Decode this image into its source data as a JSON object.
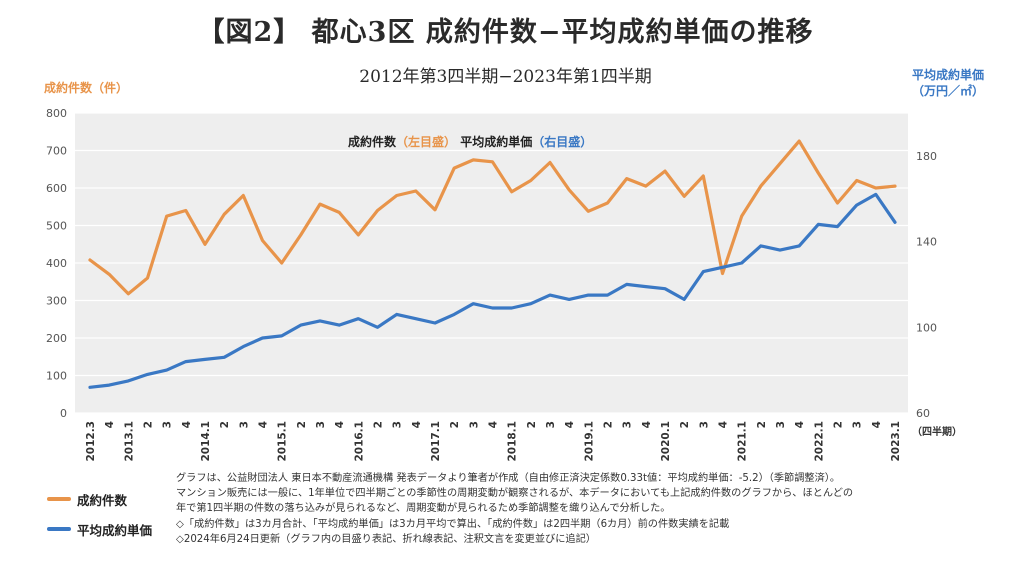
{
  "title": "【図2】 都心3区  成約件数−平均成約単価の推移",
  "subtitle": "2012年第3四半期−2023年第1四半期",
  "colors": {
    "orange": "#e8944a",
    "blue": "#3a78c4",
    "plot_bg": "#eeeeee",
    "grid": "#ffffff"
  },
  "chart_data": {
    "type": "line",
    "yleft_label": "成約件数（件）",
    "yright_label_line1": "平均成約単価",
    "yright_label_line2": "（万円／㎡）",
    "x_unit_label": "（四半期）",
    "ylim_left": [
      0,
      800
    ],
    "ylim_right": [
      60,
      200
    ],
    "yleft_ticks": [
      "0",
      "100",
      "200",
      "300",
      "400",
      "500",
      "600",
      "700",
      "800"
    ],
    "yright_ticks": [
      "60",
      "100",
      "140",
      "180"
    ],
    "grid": true,
    "categories": [
      "2012.3",
      "4",
      "2013.1",
      "2",
      "3",
      "4",
      "2014.1",
      "2",
      "3",
      "4",
      "2015.1",
      "2",
      "3",
      "4",
      "2016.1",
      "2",
      "3",
      "4",
      "2017.1",
      "2",
      "3",
      "4",
      "2018.1",
      "2",
      "3",
      "4",
      "2019.1",
      "2",
      "3",
      "4",
      "2020.1",
      "2",
      "3",
      "4",
      "2021.1",
      "2",
      "3",
      "4",
      "2022.1",
      "2",
      "3",
      "4",
      "2023.1"
    ],
    "legend_inline": {
      "a": "成約件数",
      "a_side": "（左目盛）",
      "b": "平均成約単価",
      "b_side": "（右目盛）"
    },
    "series": [
      {
        "name": "成約件数",
        "axis": "left",
        "values": [
          408,
          370,
          318,
          360,
          525,
          540,
          450,
          530,
          580,
          460,
          400,
          475,
          557,
          535,
          475,
          540,
          580,
          592,
          542,
          653,
          675,
          670,
          590,
          620,
          668,
          595,
          538,
          560,
          625,
          605,
          645,
          578,
          632,
          372,
          525,
          605,
          665,
          725,
          640,
          560,
          620,
          600,
          605
        ]
      },
      {
        "name": "平均成約単価",
        "axis": "right",
        "values": [
          72,
          73,
          75,
          78,
          80,
          84,
          85,
          86,
          91,
          95,
          96,
          101,
          103,
          101,
          104,
          100,
          106,
          104,
          102,
          106,
          111,
          109,
          109,
          111,
          115,
          113,
          115,
          115,
          120,
          119,
          118,
          113,
          126,
          128,
          130,
          138,
          136,
          138,
          148,
          147,
          157,
          162,
          149
        ]
      }
    ]
  },
  "legend": {
    "item1": "成約件数",
    "item2": "平均成約単価"
  },
  "notes": [
    "グラフは、公益財団法人 東日本不動産流通機構 発表データより筆者が作成（自由修正済決定係数0.33t値：平均成約単価：-5.2）（季節調整済）。",
    "マンション販売には一般に、1年単位で四半期ごとの季節性の周期変動が観察されるが、本データにおいても上記成約件数のグラフから、ほとんどの",
    "年で第1四半期の件数の落ち込みが見られるなど、周期変動が見られるため季節調整を織り込んで分析した。",
    "◇「成約件数」は3カ月合計、「平均成約単価」は3カ月平均で算出、「成約件数」は2四半期（6カ月）前の件数実績を記載",
    "◇2024年6月24日更新（グラフ内の目盛り表記、折れ線表記、注釈文言を変更並びに追記）"
  ]
}
